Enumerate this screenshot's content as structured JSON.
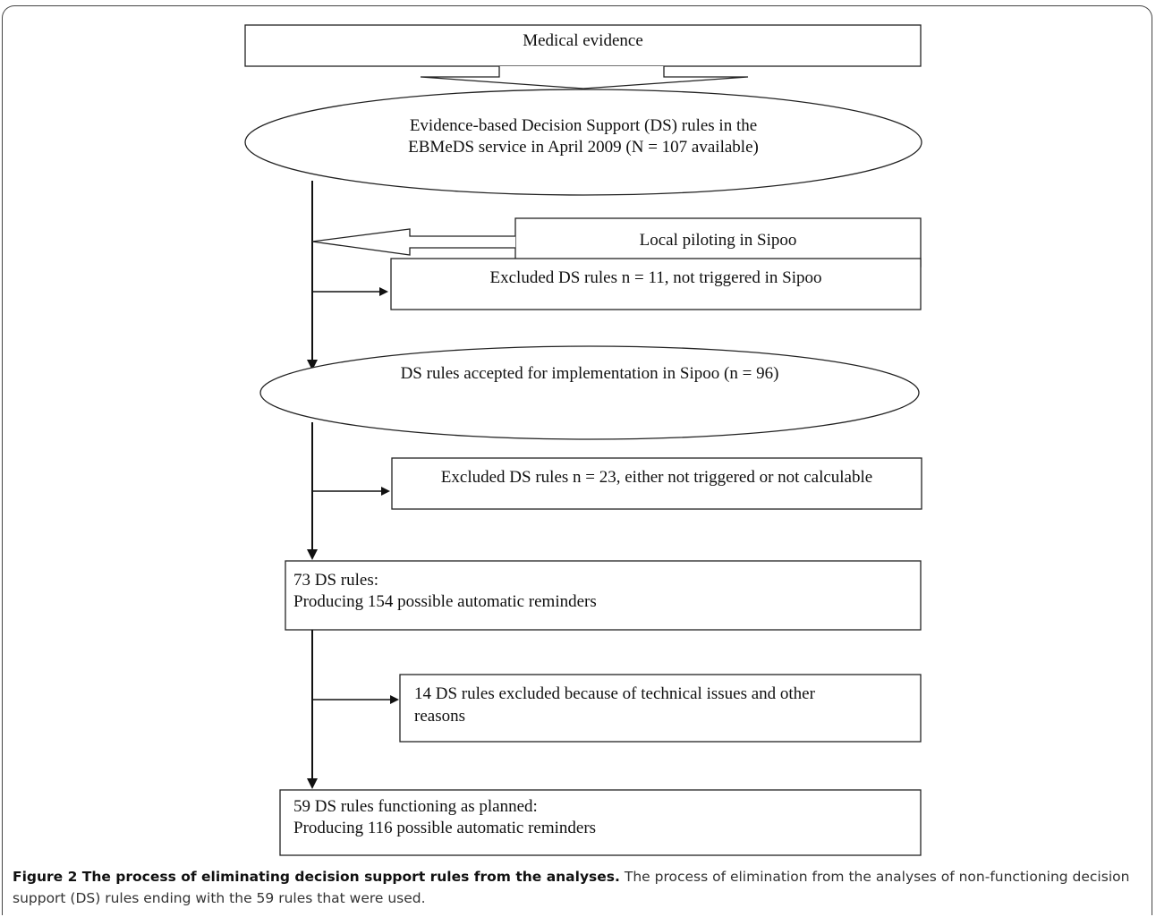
{
  "diagram": {
    "nodes": {
      "medical_evidence": "Medical evidence",
      "ds_rules_available_line1": "Evidence-based Decision Support (DS) rules in the",
      "ds_rules_available_line2": "EBMeDS service in April 2009 (N = 107 available)",
      "local_piloting": "Local piloting in Sipoo",
      "excluded_11": "Excluded DS rules n = 11, not triggered in Sipoo",
      "accepted_96": "DS rules accepted for implementation in Sipoo (n = 96)",
      "excluded_23": "Excluded DS rules n = 23, either not triggered or not calculable",
      "rules_73_line1": "73 DS rules:",
      "rules_73_line2": "Producing 154 possible automatic reminders",
      "excluded_14_line1": "14 DS rules excluded because of technical issues and other",
      "excluded_14_line2": "reasons",
      "rules_59_line1": "59 DS rules functioning as planned:",
      "rules_59_line2": "Producing 116 possible automatic reminders"
    }
  },
  "caption": {
    "title": "Figure 2 The process of eliminating decision support rules from the analyses.",
    "text": " The process of elimination from the analyses of non-functioning decision support (DS) rules ending with the 59 rules that were used."
  }
}
